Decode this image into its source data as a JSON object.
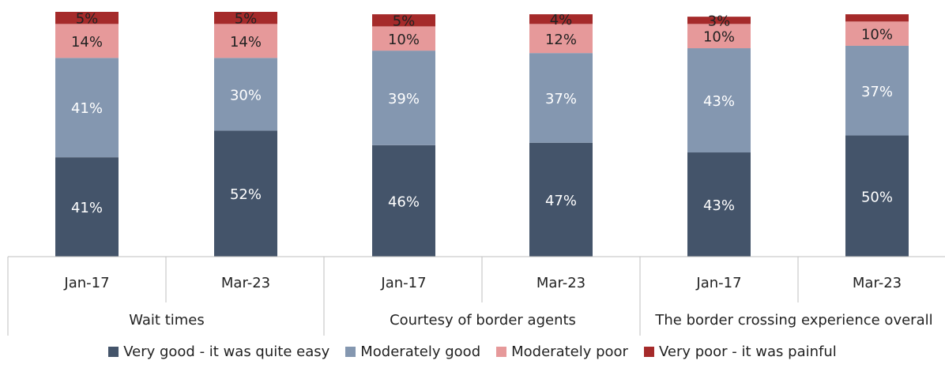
{
  "chart_data": {
    "type": "bar",
    "stacked": true,
    "groups": [
      {
        "label": "Wait times",
        "categories": [
          "Jan-17",
          "Mar-23"
        ]
      },
      {
        "label": "Courtesy of border agents",
        "categories": [
          "Jan-17",
          "Mar-23"
        ]
      },
      {
        "label": "The border crossing experience overall",
        "categories": [
          "Jan-17",
          "Mar-23"
        ]
      }
    ],
    "categories": [
      "Jan-17",
      "Mar-23",
      "Jan-17",
      "Mar-23",
      "Jan-17",
      "Mar-23"
    ],
    "series": [
      {
        "name": "Very good - it was quite easy",
        "color": "#44546a",
        "values": [
          41,
          52,
          46,
          47,
          43,
          50
        ],
        "labels": [
          "41%",
          "52%",
          "46%",
          "47%",
          "43%",
          "50%"
        ]
      },
      {
        "name": "Moderately good",
        "color": "#8497b0",
        "values": [
          41,
          30,
          39,
          37,
          43,
          37
        ],
        "labels": [
          "41%",
          "30%",
          "39%",
          "37%",
          "43%",
          "37%"
        ]
      },
      {
        "name": "Moderately poor",
        "color": "#e6999a",
        "values": [
          14,
          14,
          10,
          12,
          10,
          10
        ],
        "labels": [
          "14%",
          "14%",
          "10%",
          "12%",
          "10%",
          "10%"
        ]
      },
      {
        "name": "Very poor - it was painful",
        "color": "#a52a2a",
        "values": [
          5,
          5,
          5,
          4,
          3,
          3
        ],
        "labels": [
          "5%",
          "5%",
          "5%",
          "4%",
          "3%",
          ""
        ]
      }
    ],
    "ylim": [
      0,
      101
    ],
    "grid": false,
    "legend_position": "bottom"
  }
}
